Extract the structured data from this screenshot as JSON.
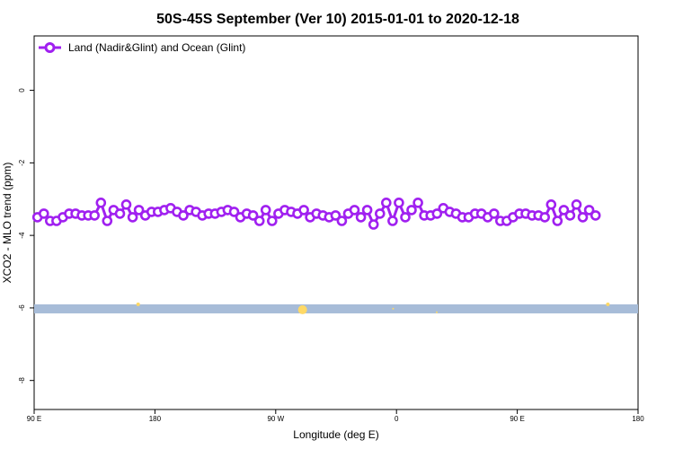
{
  "chart_data": {
    "type": "line",
    "title": "50S-45S September (Ver 10)   2015-01-01 to 2020-12-18",
    "xlabel": "Longitude (deg E)",
    "ylabel": "XCO2 - MLO trend (ppm)",
    "xlim": [
      90,
      450
    ],
    "ylim": [
      -8.8,
      1.5
    ],
    "x_ticks": [
      {
        "value": 90,
        "label": "90 E"
      },
      {
        "value": 162,
        "label": "180"
      },
      {
        "value": 234,
        "label": "90 W"
      },
      {
        "value": 306,
        "label": "0"
      },
      {
        "value": 378,
        "label": "90 E"
      },
      {
        "value": 450,
        "label": "180"
      }
    ],
    "y_ticks": [
      0,
      -2,
      -4,
      -6,
      -8
    ],
    "legend": {
      "position": "top-left",
      "entries": [
        "Land (Nadir&Glint) and Ocean (Glint)"
      ]
    },
    "colors": {
      "series": "#a020f0",
      "band": "#a7bcd8",
      "highlight": "#ffd966"
    },
    "series": [
      {
        "name": "Land (Nadir&Glint) and Ocean (Glint)",
        "lon_start": 92,
        "lon_step": 3.78,
        "values": [
          -3.5,
          -3.4,
          -3.6,
          -3.6,
          -3.5,
          -3.4,
          -3.4,
          -3.45,
          -3.45,
          -3.45,
          -3.1,
          -3.6,
          -3.3,
          -3.4,
          -3.15,
          -3.5,
          -3.3,
          -3.45,
          -3.35,
          -3.35,
          -3.3,
          -3.25,
          -3.35,
          -3.45,
          -3.3,
          -3.35,
          -3.45,
          -3.4,
          -3.4,
          -3.35,
          -3.3,
          -3.35,
          -3.5,
          -3.4,
          -3.45,
          -3.6,
          -3.3,
          -3.6,
          -3.4,
          -3.3,
          -3.35,
          -3.4,
          -3.3,
          -3.5,
          -3.4,
          -3.45,
          -3.5,
          -3.45,
          -3.6,
          -3.4,
          -3.3,
          -3.5,
          -3.3,
          -3.7,
          -3.4,
          -3.1,
          -3.6,
          -3.1,
          -3.5,
          -3.3,
          -3.1,
          -3.45,
          -3.45,
          -3.4,
          -3.25,
          -3.35,
          -3.4,
          -3.5,
          -3.5,
          -3.4,
          -3.4,
          -3.5,
          -3.4,
          -3.6,
          -3.6,
          -3.5,
          -3.4,
          -3.4,
          -3.45,
          -3.45,
          -3.5,
          -3.15,
          -3.6,
          -3.3,
          -3.45,
          -3.15,
          -3.5,
          -3.3,
          -3.45
        ]
      }
    ],
    "band": {
      "y_min": -6.15,
      "y_max": -5.9
    },
    "highlights": [
      {
        "lon": 152,
        "y": -5.9,
        "size": 2
      },
      {
        "lon": 250,
        "y": -6.05,
        "size": 5
      },
      {
        "lon": 304,
        "y": -6.02,
        "size": 1
      },
      {
        "lon": 330,
        "y": -6.12,
        "size": 1
      },
      {
        "lon": 432,
        "y": -5.9,
        "size": 2
      }
    ]
  }
}
